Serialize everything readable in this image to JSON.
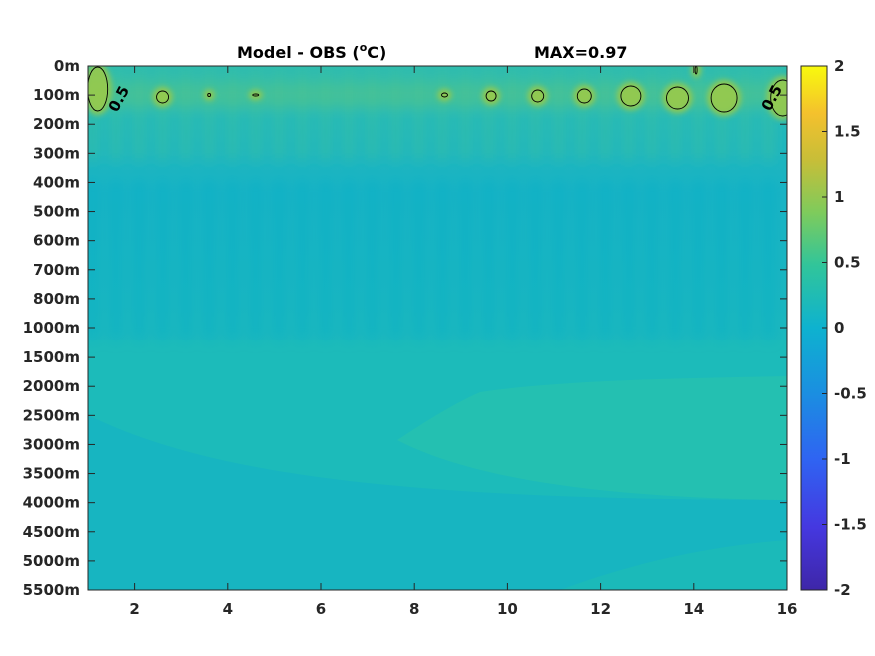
{
  "chart_data": {
    "type": "heatmap",
    "title_left": "Model - OBS (",
    "title_unit_sup": "o",
    "title_unit_tail": "C)",
    "title_right": "MAX=0.97",
    "xlabel": "",
    "ylabel": "",
    "x_range": [
      1,
      16
    ],
    "x_ticks": [
      2,
      4,
      6,
      8,
      10,
      12,
      14,
      16
    ],
    "y_ticks": [
      "0m",
      "100m",
      "200m",
      "300m",
      "400m",
      "500m",
      "600m",
      "700m",
      "800m",
      "1000m",
      "1500m",
      "2000m",
      "2500m",
      "3000m",
      "3500m",
      "4000m",
      "4500m",
      "5000m",
      "5500m"
    ],
    "colorbar": {
      "range": [
        -2,
        2
      ],
      "ticks": [
        "2",
        "1.5",
        "1",
        "0.5",
        "0",
        "-0.5",
        "-1",
        "-1.5",
        "-2"
      ],
      "colormap": "parula"
    },
    "contour_level": 0.5,
    "contour_labels": [
      "0.5",
      "0.5"
    ],
    "max_value": 0.97,
    "colors": {
      "background_mid": "#15b2c6",
      "deep_band": "#1fbdb6",
      "warm_patch": "#8bc84e",
      "hot_patch": "#b5c83a"
    }
  }
}
